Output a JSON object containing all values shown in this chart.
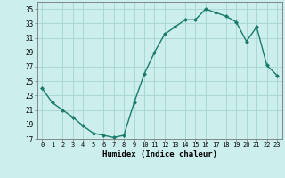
{
  "x": [
    0,
    1,
    2,
    3,
    4,
    5,
    6,
    7,
    8,
    9,
    10,
    11,
    12,
    13,
    14,
    15,
    16,
    17,
    18,
    19,
    20,
    21,
    22,
    23
  ],
  "y": [
    24.0,
    22.0,
    21.0,
    20.0,
    18.8,
    17.8,
    17.5,
    17.2,
    17.5,
    22.0,
    26.0,
    29.0,
    31.5,
    32.5,
    33.5,
    33.5,
    35.0,
    34.5,
    34.0,
    33.2,
    30.5,
    32.5,
    27.2,
    25.8
  ],
  "line_color": "#1a7a6a",
  "marker": "D",
  "marker_size": 2,
  "bg_color": "#cceeed",
  "grid_color": "#aad8d6",
  "xlabel": "Humidex (Indice chaleur)",
  "ylim": [
    17,
    36
  ],
  "xlim_min": -0.5,
  "xlim_max": 23.5,
  "yticks": [
    17,
    19,
    21,
    23,
    25,
    27,
    29,
    31,
    33,
    35
  ],
  "xticks": [
    0,
    1,
    2,
    3,
    4,
    5,
    6,
    7,
    8,
    9,
    10,
    11,
    12,
    13,
    14,
    15,
    16,
    17,
    18,
    19,
    20,
    21,
    22,
    23
  ],
  "xlabel_fontsize": 6.5,
  "ytick_fontsize": 5.5,
  "xtick_fontsize": 5.0
}
